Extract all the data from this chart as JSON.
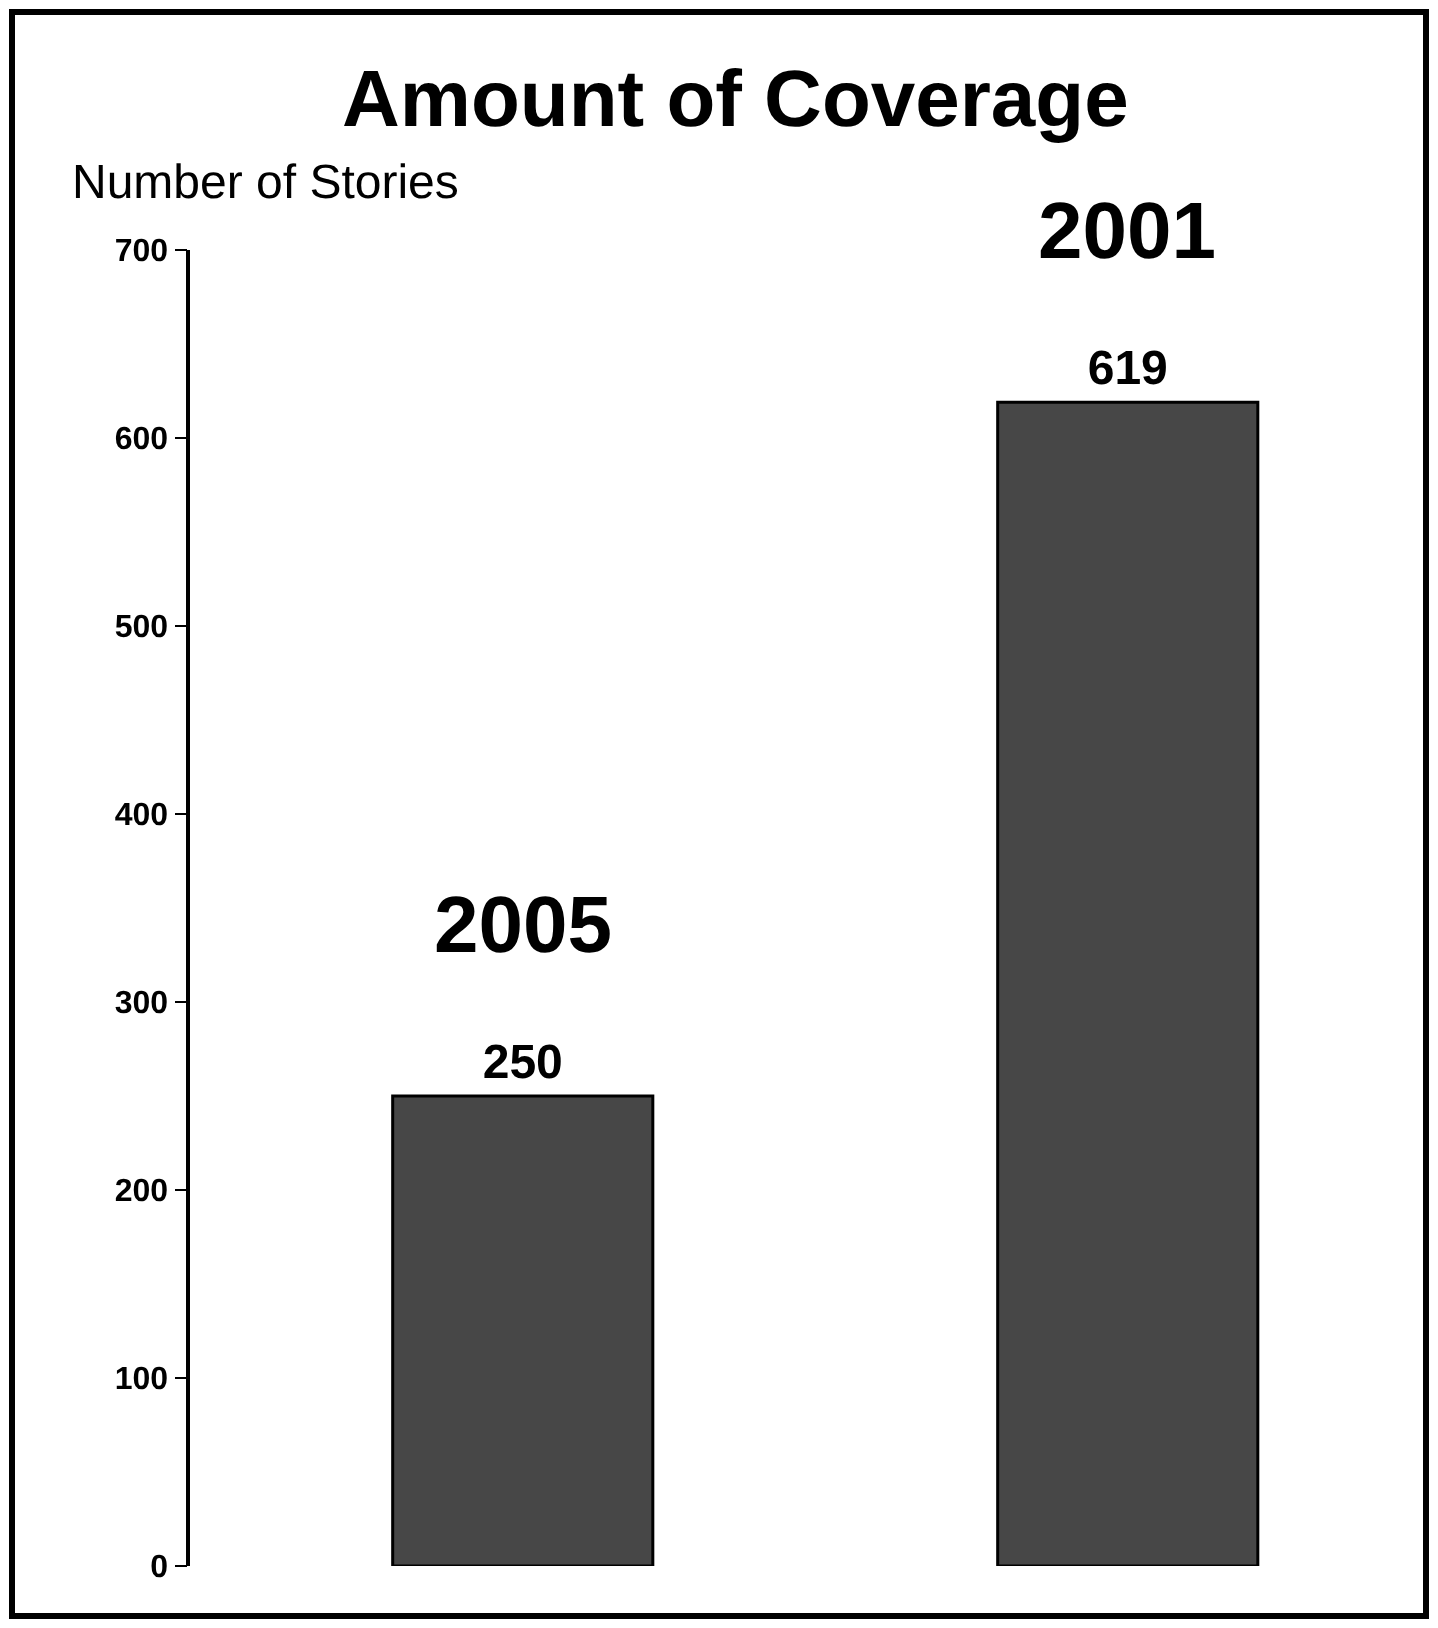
{
  "chart_data": {
    "type": "bar",
    "title": "Amount of Coverage",
    "ylabel": "Number of Stories",
    "categories": [
      "2005",
      "2001"
    ],
    "series": [
      {
        "color": "#474747",
        "values": [
          250,
          619
        ]
      }
    ],
    "ylim": [
      0,
      700
    ],
    "yticks": [
      0,
      100,
      200,
      300,
      400,
      500,
      600,
      700
    ],
    "data_labels": true,
    "tick_labels": "y"
  }
}
